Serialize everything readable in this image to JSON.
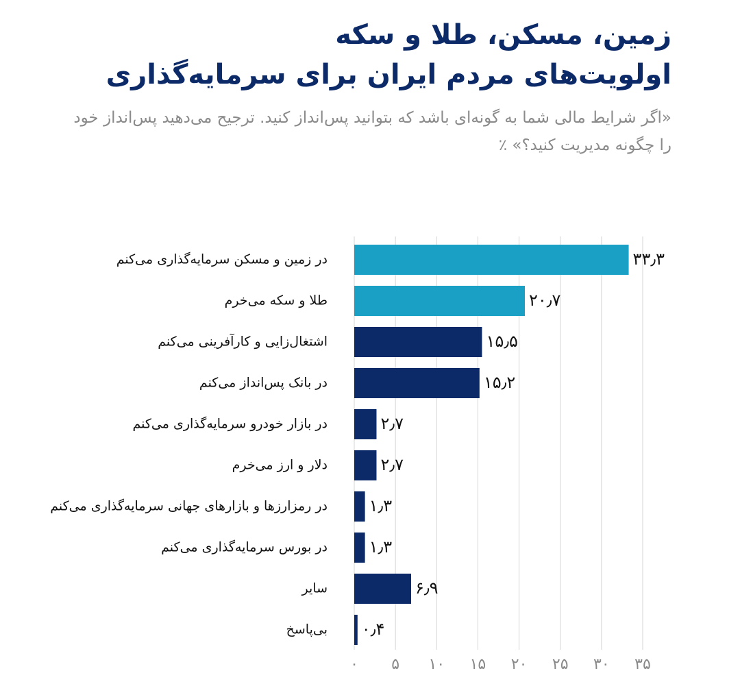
{
  "chart_data": {
    "type": "bar",
    "orientation": "horizontal",
    "title": [
      "زمین، مسکن، طلا و سکه",
      "اولویت‌های مردم ایران برای سرمایه‌گذاری"
    ],
    "subtitle": "«اگر شرایط مالی شما به گونه‌ای باشد که بتوانید پس‌انداز کنید. ترجیح می‌دهید پس‌انداز خود را چگونه مدیریت کنید؟» ٪",
    "categories": [
      "در زمین و مسکن سرمایه‌گذاری می‌کنم",
      "طلا و سکه می‌خرم",
      "اشتغال‌زایی و کارآفرینی می‌کنم",
      "در بانک پس‌انداز می‌کنم",
      "در بازار خودرو سرمایه‌گذاری می‌کنم",
      "دلار و ارز می‌خرم",
      "در رمزارزها و بازارهای جهانی سرمایه‌گذاری می‌کنم",
      "در بورس سرمایه‌گذاری می‌کنم",
      "سایر",
      "بی‌پاسخ"
    ],
    "values": [
      33.3,
      20.7,
      15.5,
      15.2,
      2.7,
      2.7,
      1.3,
      1.3,
      6.9,
      0.4
    ],
    "value_labels": [
      "۳۳٫۳",
      "۲۰٫۷",
      "۱۵٫۵",
      "۱۵٫۲",
      "۲٫۷",
      "۲٫۷",
      "۱٫۳",
      "۱٫۳",
      "۶٫۹",
      "۰٫۴"
    ],
    "colors": [
      "#1aa0c4",
      "#1aa0c4",
      "#0d2a68",
      "#0d2a68",
      "#0d2a68",
      "#0d2a68",
      "#0d2a68",
      "#0d2a68",
      "#0d2a68",
      "#0d2a68"
    ],
    "xlim": [
      0,
      35
    ],
    "xticks": [
      {
        "value": 0,
        "label": "۰"
      },
      {
        "value": 5,
        "label": "۵"
      },
      {
        "value": 10,
        "label": "۱۰"
      },
      {
        "value": 15,
        "label": "۱۵"
      },
      {
        "value": 20,
        "label": "۲۰"
      },
      {
        "value": 25,
        "label": "۲۵"
      },
      {
        "value": 30,
        "label": "۳۰"
      },
      {
        "value": 35,
        "label": "۳۵"
      }
    ],
    "grid": true
  }
}
